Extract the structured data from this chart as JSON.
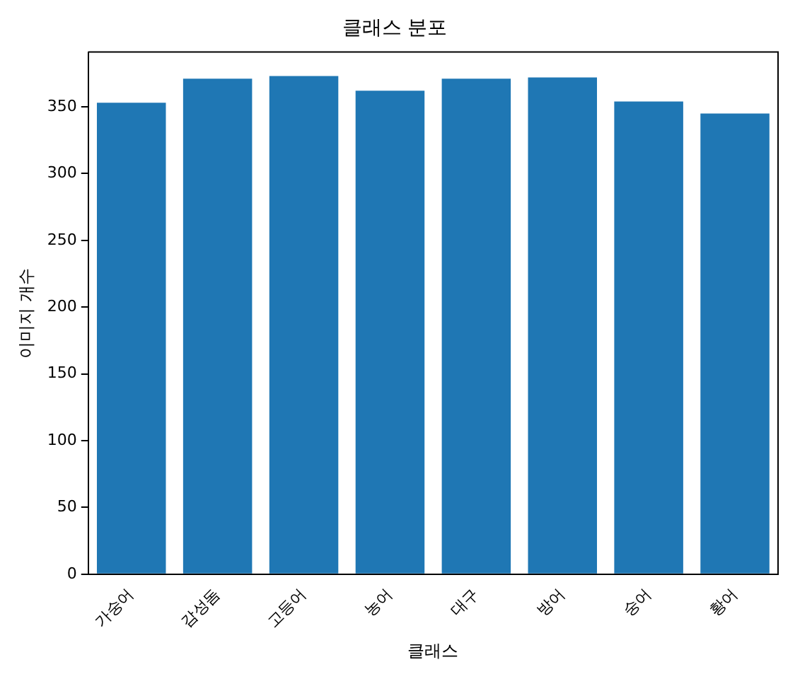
{
  "chart_data": {
    "type": "bar",
    "title": "클래스 분포",
    "xlabel": "클래스",
    "ylabel": "이미지 개수",
    "categories": [
      "가숭어",
      "감성돔",
      "고등어",
      "농어",
      "대구",
      "방어",
      "숭어",
      "황어"
    ],
    "values": [
      353,
      371,
      373,
      362,
      371,
      372,
      354,
      345
    ],
    "color": "#1f77b4",
    "ylim": [
      0,
      391
    ],
    "yticks": [
      0,
      50,
      100,
      150,
      200,
      250,
      300,
      350
    ],
    "grid": false,
    "legend": false
  }
}
